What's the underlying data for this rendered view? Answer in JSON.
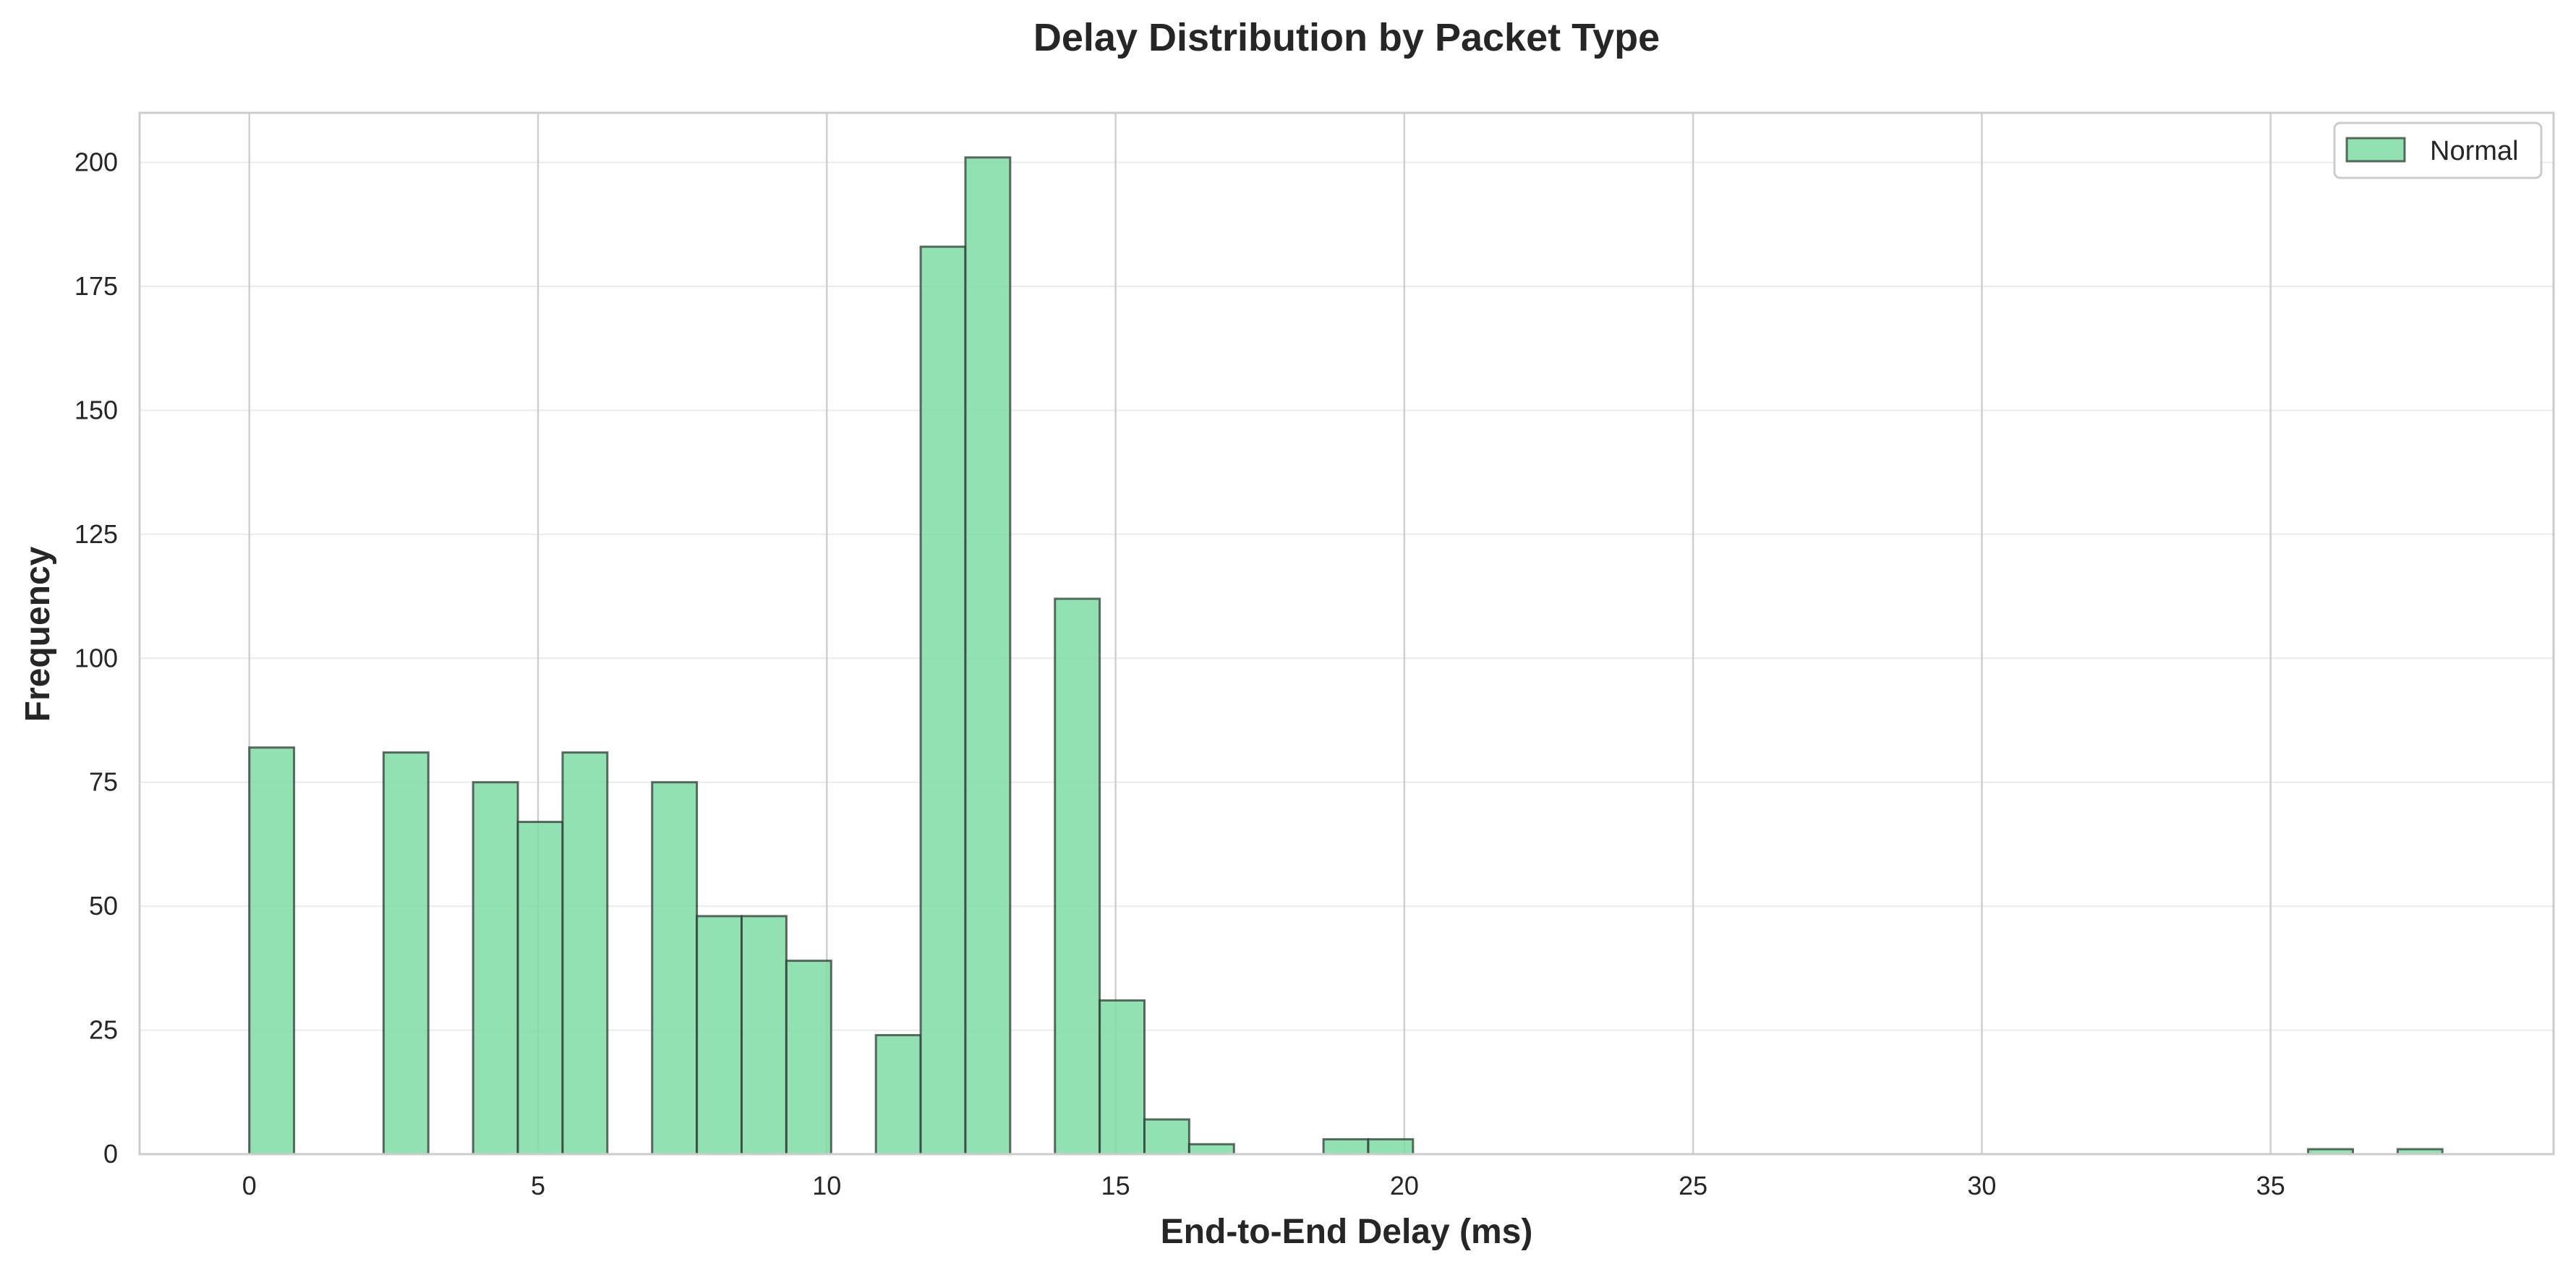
{
  "chart_data": {
    "type": "bar",
    "title": "Delay Distribution by Packet Type",
    "xlabel": "End-to-End Delay (ms)",
    "ylabel": "Frequency",
    "xlim": [
      -1.9,
      39.9
    ],
    "ylim": [
      0,
      210
    ],
    "xticks": [
      0,
      5,
      10,
      15,
      20,
      25,
      30,
      35
    ],
    "yticks": [
      0,
      25,
      50,
      75,
      100,
      125,
      150,
      175,
      200
    ],
    "grid": true,
    "legend_position": "top-right",
    "bin_width": 0.775,
    "series": [
      {
        "name": "Normal",
        "color": "#7fdca6",
        "edge_color": "#2f3b33",
        "bins": [
          {
            "x0": 0.0,
            "count": 82
          },
          {
            "x0": 2.325,
            "count": 81
          },
          {
            "x0": 3.875,
            "count": 75
          },
          {
            "x0": 4.65,
            "count": 67
          },
          {
            "x0": 5.425,
            "count": 81
          },
          {
            "x0": 6.975,
            "count": 75
          },
          {
            "x0": 7.75,
            "count": 48
          },
          {
            "x0": 8.525,
            "count": 48
          },
          {
            "x0": 9.3,
            "count": 39
          },
          {
            "x0": 10.85,
            "count": 24
          },
          {
            "x0": 11.625,
            "count": 183
          },
          {
            "x0": 12.4,
            "count": 201
          },
          {
            "x0": 13.95,
            "count": 112
          },
          {
            "x0": 14.725,
            "count": 31
          },
          {
            "x0": 15.5,
            "count": 7
          },
          {
            "x0": 16.275,
            "count": 2
          },
          {
            "x0": 18.6,
            "count": 3
          },
          {
            "x0": 19.375,
            "count": 3
          },
          {
            "x0": 35.65,
            "count": 1
          },
          {
            "x0": 37.2,
            "count": 1
          }
        ]
      }
    ]
  }
}
